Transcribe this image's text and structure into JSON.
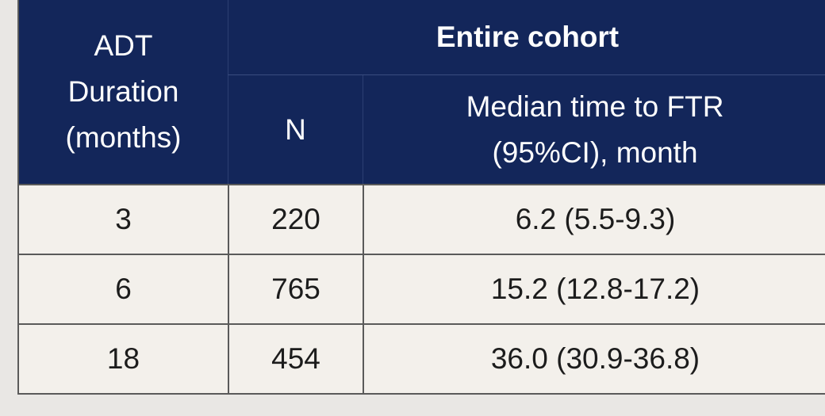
{
  "table": {
    "header": {
      "first_column": [
        "ADT",
        "Duration",
        "(months)"
      ],
      "group": "Entire cohort",
      "columns": [
        [
          "N"
        ],
        [
          "Median time to FTR",
          "(95%CI), month"
        ]
      ]
    },
    "rows": [
      [
        "3",
        "220",
        "6.2 (5.5-9.3)"
      ],
      [
        "6",
        "765",
        "15.2 (12.8-17.2)"
      ],
      [
        "18",
        "454",
        "36.0 (30.9-36.8)"
      ]
    ]
  }
}
